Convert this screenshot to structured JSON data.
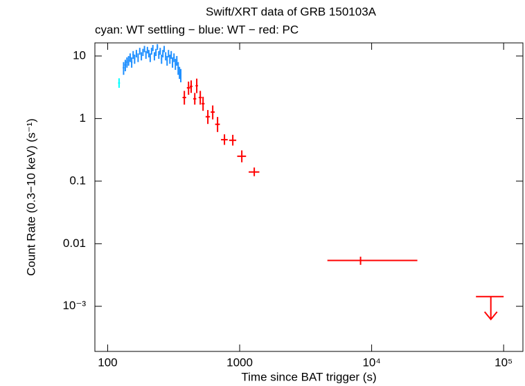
{
  "chart_data": {
    "type": "scatter",
    "title": "Swift/XRT data of GRB 150103A",
    "subtitle": "cyan: WT settling − blue: WT − red: PC",
    "x_label": "Time since BAT trigger (s)",
    "y_label": "Count Rate (0.3−10 keV) (s⁻¹)",
    "log_x": true,
    "log_y": true,
    "xlim": [
      80,
      140000
    ],
    "ylim": [
      0.00019,
      16.2
    ],
    "xticks": [
      100,
      1000,
      {
        "value": 10000,
        "label": "10⁴"
      },
      {
        "value": 100000,
        "label": "10⁵"
      }
    ],
    "yticks": [
      {
        "value": 0.001,
        "label": "10⁻³"
      },
      0.01,
      0.1,
      1,
      10
    ],
    "series": [
      {
        "color": "#00ffff",
        "x": [
          122
        ],
        "xerr": [
          [
            2,
            2
          ]
        ],
        "y": [
          3.7
        ],
        "yerr": [
          [
            0.6,
            0.7
          ]
        ]
      },
      {
        "color": "#1e8fff",
        "x": [
          132,
          136,
          140,
          144,
          148,
          152,
          156,
          160,
          165,
          170,
          175,
          180,
          185,
          190,
          195,
          200,
          205,
          210,
          215,
          220,
          226,
          232,
          238,
          244,
          250,
          256,
          262,
          268,
          275,
          282,
          289,
          296,
          303,
          310,
          318,
          326,
          334,
          342,
          350,
          358
        ],
        "xerr": [
          [
            2,
            2
          ],
          [
            2,
            2
          ],
          [
            2,
            2
          ],
          [
            2,
            2
          ],
          [
            2,
            2
          ],
          [
            2,
            2
          ],
          [
            2,
            2
          ],
          [
            2,
            2
          ],
          [
            2,
            2
          ],
          [
            2,
            2
          ],
          [
            2,
            2
          ],
          [
            2,
            2
          ],
          [
            2,
            2
          ],
          [
            2,
            2
          ],
          [
            2,
            2
          ],
          [
            2,
            2
          ],
          [
            2,
            2
          ],
          [
            2,
            2
          ],
          [
            2,
            2
          ],
          [
            2,
            2
          ],
          [
            3,
            3
          ],
          [
            3,
            3
          ],
          [
            3,
            3
          ],
          [
            3,
            3
          ],
          [
            3,
            3
          ],
          [
            3,
            3
          ],
          [
            3,
            3
          ],
          [
            3,
            3
          ],
          [
            3,
            3
          ],
          [
            3,
            3
          ],
          [
            3,
            3
          ],
          [
            3,
            3
          ],
          [
            3,
            3
          ],
          [
            3,
            3
          ],
          [
            4,
            4
          ],
          [
            4,
            4
          ],
          [
            4,
            4
          ],
          [
            4,
            4
          ],
          [
            4,
            4
          ],
          [
            4,
            4
          ]
        ],
        "y": [
          6.5,
          7.2,
          8.0,
          8.5,
          9.5,
          8.0,
          10.5,
          9.0,
          11.0,
          9.5,
          12.0,
          10.0,
          11.5,
          13.0,
          10.5,
          12.5,
          11.0,
          9.5,
          12.0,
          13.5,
          10.0,
          11.5,
          14.0,
          10.5,
          12.0,
          9.0,
          11.0,
          13.0,
          10.0,
          8.5,
          11.0,
          9.0,
          10.5,
          8.0,
          9.5,
          7.5,
          8.5,
          6.5,
          5.5,
          5.0
        ],
        "yerr": [
          [
            1.5,
            1.5
          ],
          [
            1.5,
            1.5
          ],
          [
            1.5,
            1.5
          ],
          [
            1.5,
            1.5
          ],
          [
            1.5,
            1.5
          ],
          [
            1.5,
            1.5
          ],
          [
            1.5,
            1.5
          ],
          [
            1.5,
            1.5
          ],
          [
            1.5,
            1.5
          ],
          [
            1.5,
            1.5
          ],
          [
            1.5,
            1.5
          ],
          [
            1.5,
            1.5
          ],
          [
            1.5,
            1.5
          ],
          [
            1.5,
            1.5
          ],
          [
            1.5,
            1.5
          ],
          [
            1.5,
            1.5
          ],
          [
            1.5,
            1.5
          ],
          [
            1.5,
            1.5
          ],
          [
            1.5,
            1.5
          ],
          [
            1.5,
            1.5
          ],
          [
            1.5,
            1.5
          ],
          [
            1.5,
            1.5
          ],
          [
            1.5,
            1.5
          ],
          [
            1.5,
            1.5
          ],
          [
            1.5,
            1.5
          ],
          [
            1.5,
            1.5
          ],
          [
            1.5,
            1.5
          ],
          [
            1.5,
            1.5
          ],
          [
            1.5,
            1.5
          ],
          [
            1.5,
            1.5
          ],
          [
            1.5,
            1.5
          ],
          [
            1.5,
            1.5
          ],
          [
            1.5,
            1.5
          ],
          [
            1.5,
            1.5
          ],
          [
            1.5,
            1.5
          ],
          [
            1.5,
            1.5
          ],
          [
            1.5,
            1.5
          ],
          [
            1.5,
            1.5
          ],
          [
            1.2,
            1.2
          ],
          [
            1.2,
            1.2
          ]
        ]
      },
      {
        "color": "#ff0000",
        "x": [
          381,
          410,
          429,
          457,
          473,
          503,
          528,
          574,
          625,
          680,
          767,
          887,
          1038,
          1290,
          8240
        ],
        "xerr": [
          [
            12,
            12
          ],
          [
            12,
            12
          ],
          [
            10,
            10
          ],
          [
            12,
            12
          ],
          [
            10,
            10
          ],
          [
            14,
            14
          ],
          [
            14,
            14
          ],
          [
            22,
            22
          ],
          [
            22,
            22
          ],
          [
            28,
            28
          ],
          [
            45,
            45
          ],
          [
            55,
            55
          ],
          [
            80,
            80
          ],
          [
            120,
            120
          ],
          [
            3620,
            13960
          ]
        ],
        "y": [
          2.17,
          3.1,
          3.27,
          2.07,
          3.35,
          2.17,
          1.73,
          1.07,
          1.27,
          0.81,
          0.46,
          0.45,
          0.25,
          0.14,
          0.0054
        ],
        "yerr": [
          [
            0.5,
            0.6
          ],
          [
            0.7,
            0.8
          ],
          [
            0.7,
            0.8
          ],
          [
            0.4,
            0.5
          ],
          [
            0.8,
            1.0
          ],
          [
            0.5,
            0.6
          ],
          [
            0.4,
            0.5
          ],
          [
            0.25,
            0.3
          ],
          [
            0.3,
            0.35
          ],
          [
            0.2,
            0.25
          ],
          [
            0.08,
            0.1
          ],
          [
            0.08,
            0.1
          ],
          [
            0.05,
            0.06
          ],
          [
            0.02,
            0.025
          ],
          [
            0.0008,
            0.0008
          ]
        ]
      },
      {
        "color": "#ff0000",
        "upper_limit": true,
        "x": [
          80000
        ],
        "xerr": [
          [
            18300,
            20000
          ]
        ],
        "y": [
          0.00143
        ]
      }
    ]
  }
}
